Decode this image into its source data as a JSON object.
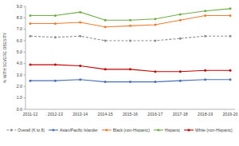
{
  "chart_data": {
    "type": "line",
    "y_label": "% WITH SEVERE OBESITY",
    "categories": [
      "2011-12",
      "2012-13",
      "2013-14",
      "2014-15",
      "2015-16",
      "2016-17",
      "2017-18",
      "2018-19",
      "2019-20"
    ],
    "series": [
      {
        "name": "Overall (K to 8)",
        "color": "#8c8c8c",
        "line_style": "dashed",
        "marker": "circle",
        "values": [
          6.4,
          6.3,
          6.4,
          6.0,
          6.0,
          6.0,
          6.2,
          6.4,
          6.4
        ]
      },
      {
        "name": "Asian/Pacific Islander",
        "color": "#4a6fb5",
        "line_style": "solid",
        "marker": "circle",
        "values": [
          2.5,
          2.5,
          2.6,
          2.4,
          2.4,
          2.4,
          2.5,
          2.6,
          2.6
        ]
      },
      {
        "name": "Black (non-Hispanic)",
        "color": "#ed7d31",
        "line_style": "solid",
        "marker": "circle",
        "values": [
          7.5,
          7.5,
          7.6,
          7.2,
          7.3,
          7.4,
          7.8,
          8.2,
          8.2
        ]
      },
      {
        "name": "Hispanic",
        "color": "#70ad47",
        "line_style": "solid",
        "marker": "circle",
        "values": [
          8.2,
          8.2,
          8.5,
          7.8,
          7.8,
          7.9,
          8.3,
          8.6,
          8.8
        ]
      },
      {
        "name": "White (non-Hispanic)",
        "color": "#c00000",
        "line_style": "solid",
        "marker": "circle",
        "values": [
          3.9,
          3.9,
          3.8,
          3.5,
          3.5,
          3.3,
          3.3,
          3.4,
          3.4
        ]
      }
    ],
    "ylim": [
      0,
      9
    ],
    "yticks": [
      {
        "value": 0,
        "label": "0.0"
      },
      {
        "value": 1,
        "label": "1.0"
      },
      {
        "value": 2,
        "label": "2.0"
      },
      {
        "value": 3,
        "label": "3.0"
      },
      {
        "value": 4,
        "label": "4.0"
      },
      {
        "value": 5,
        "label": "5.0"
      },
      {
        "value": 6,
        "label": "6.0"
      },
      {
        "value": 7,
        "label": "7.0"
      },
      {
        "value": 8,
        "label": "8.0"
      },
      {
        "value": 9,
        "label": "9.0"
      }
    ],
    "grid": false,
    "legend": "bottom"
  }
}
